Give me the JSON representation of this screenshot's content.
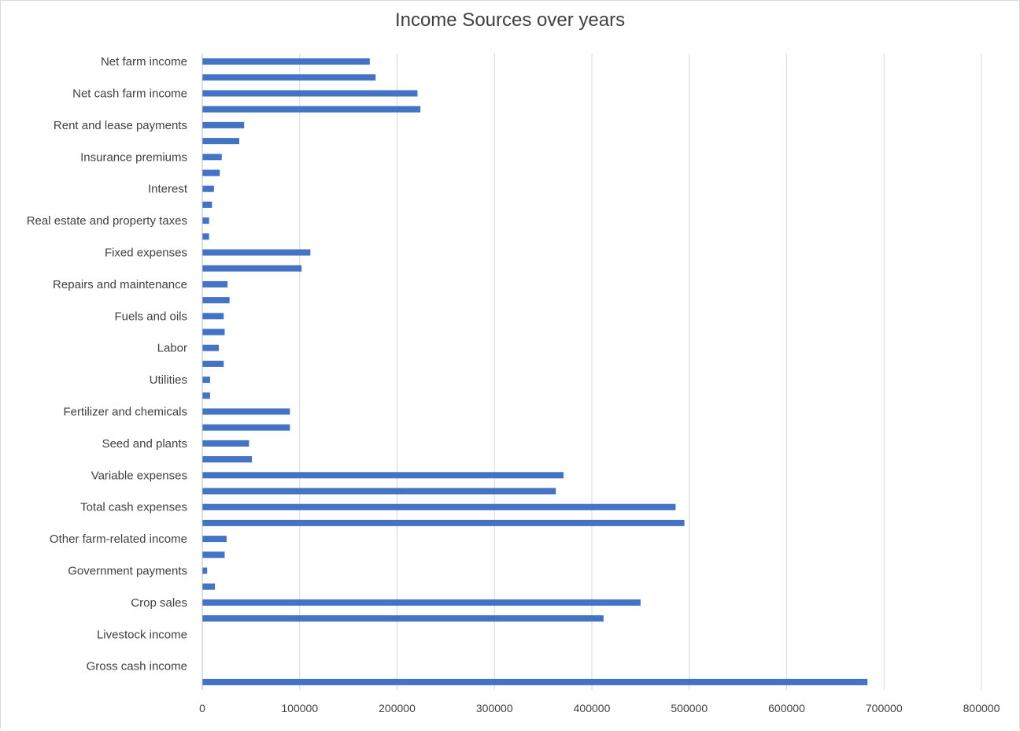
{
  "chart_data": {
    "type": "bar",
    "orientation": "horizontal",
    "title": "Income Sources over years",
    "xlabel": "",
    "ylabel": "",
    "xlim": [
      0,
      800000
    ],
    "x_ticks": [
      "0",
      "100000",
      "200000",
      "300000",
      "400000",
      "500000",
      "600000",
      "700000",
      "800000"
    ],
    "grid": true,
    "legend": "none",
    "bar_color": "#4472c4",
    "categories": [
      "Gross cash income",
      "Livestock income",
      "Crop sales",
      "Government payments",
      "Other farm-related income",
      "Total cash expenses",
      "Variable expenses",
      "Seed and plants",
      "Fertilizer and chemicals",
      "Utilities",
      "Labor",
      "Fuels and oils",
      "Repairs and maintenance",
      "Fixed expenses",
      "Real estate and property taxes",
      "Interest",
      "Insurance premiums",
      "Rent and lease payments",
      "Net cash farm income",
      "Net farm income"
    ],
    "series": [
      {
        "values": [
          683000,
          0,
          412000,
          13000,
          23000,
          495000,
          363000,
          51000,
          90000,
          8000,
          22000,
          23000,
          28000,
          102000,
          7000,
          10000,
          18000,
          38000,
          224000,
          178000
        ]
      },
      {
        "values": [
          0,
          0,
          450000,
          5000,
          25000,
          486000,
          371000,
          48000,
          90000,
          8000,
          17000,
          22000,
          26000,
          111000,
          7000,
          12000,
          20000,
          43000,
          221000,
          172000
        ]
      }
    ]
  }
}
